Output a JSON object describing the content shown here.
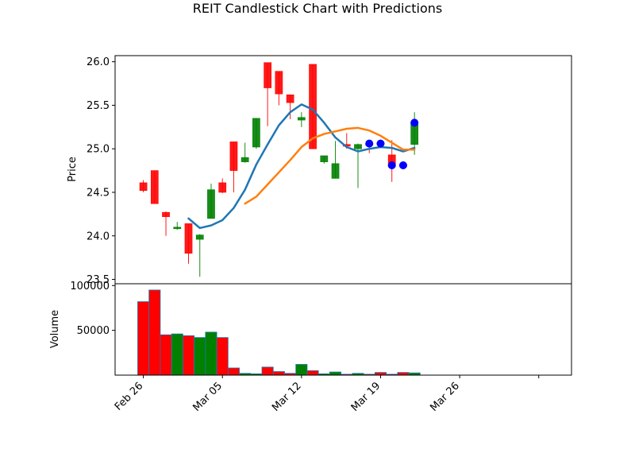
{
  "chart_data": {
    "type": "candlestick",
    "title": "REIT Candlestick Chart with Predictions",
    "price_panel": {
      "ylabel": "Price",
      "ylim": [
        23.45,
        26.07
      ],
      "yticks": [
        23.5,
        24.0,
        24.5,
        25.0,
        25.5,
        26.0
      ],
      "ytick_labels": [
        "23.5",
        "24.0",
        "24.5",
        "25.0",
        "25.5",
        "26.0"
      ]
    },
    "volume_panel": {
      "ylabel": "Volume",
      "ylim": [
        0,
        102000
      ],
      "yticks": [
        50000,
        100000
      ],
      "ytick_labels": [
        "50000",
        "100000"
      ]
    },
    "x_axis": {
      "tick_positions": [
        0,
        7,
        14,
        21,
        28,
        35
      ],
      "tick_labels": [
        "Feb 26",
        "Mar 05",
        "Mar 12",
        "Mar 19",
        "Mar 26",
        ""
      ],
      "xlim": [
        -2.5,
        37.9
      ]
    },
    "candles": [
      {
        "x": 0,
        "open": 24.61,
        "high": 24.64,
        "low": 24.5,
        "close": 24.52,
        "volume": 82000
      },
      {
        "x": 1,
        "open": 24.75,
        "high": 24.75,
        "low": 24.37,
        "close": 24.37,
        "volume": 95000
      },
      {
        "x": 2,
        "open": 24.27,
        "high": 24.28,
        "low": 24.0,
        "close": 24.22,
        "volume": 45000
      },
      {
        "x": 3,
        "open": 24.09,
        "high": 24.16,
        "low": 24.07,
        "close": 24.1,
        "volume": 46000
      },
      {
        "x": 4,
        "open": 24.14,
        "high": 24.14,
        "low": 23.68,
        "close": 23.8,
        "volume": 44000
      },
      {
        "x": 5,
        "open": 23.96,
        "high": 24.02,
        "low": 23.53,
        "close": 24.01,
        "volume": 42000
      },
      {
        "x": 6,
        "open": 24.2,
        "high": 24.6,
        "low": 24.2,
        "close": 24.53,
        "volume": 48000
      },
      {
        "x": 7,
        "open": 24.61,
        "high": 24.66,
        "low": 24.49,
        "close": 24.5,
        "volume": 42000
      },
      {
        "x": 8,
        "open": 25.08,
        "high": 25.08,
        "low": 24.5,
        "close": 24.75,
        "volume": 8000
      },
      {
        "x": 9,
        "open": 24.85,
        "high": 25.07,
        "low": 24.84,
        "close": 24.9,
        "volume": 2000
      },
      {
        "x": 10,
        "open": 25.02,
        "high": 25.35,
        "low": 25.0,
        "close": 25.35,
        "volume": 1500
      },
      {
        "x": 11,
        "open": 25.99,
        "high": 25.99,
        "low": 25.26,
        "close": 25.7,
        "volume": 9000
      },
      {
        "x": 12,
        "open": 25.89,
        "high": 25.89,
        "low": 25.5,
        "close": 25.63,
        "volume": 4000
      },
      {
        "x": 13,
        "open": 25.62,
        "high": 25.62,
        "low": 25.34,
        "close": 25.53,
        "volume": 2000
      },
      {
        "x": 14,
        "open": 25.33,
        "high": 25.42,
        "low": 25.25,
        "close": 25.36,
        "volume": 12000
      },
      {
        "x": 15,
        "open": 25.97,
        "high": 25.97,
        "low": 25.0,
        "close": 25.0,
        "volume": 5000
      },
      {
        "x": 16,
        "open": 24.85,
        "high": 24.92,
        "low": 24.83,
        "close": 24.92,
        "volume": 1500
      },
      {
        "x": 17,
        "open": 24.66,
        "high": 25.09,
        "low": 24.66,
        "close": 24.83,
        "volume": 3500
      },
      {
        "x": 18,
        "open": 25.05,
        "high": 25.18,
        "low": 25.0,
        "close": 25.03,
        "volume": 1000
      },
      {
        "x": 19,
        "open": 25.0,
        "high": 25.06,
        "low": 24.55,
        "close": 25.05,
        "volume": 2000
      },
      {
        "x": 20,
        "open": 25.06,
        "high": 25.1,
        "low": 24.95,
        "close": 25.04,
        "volume": 1000
      },
      {
        "x": 21,
        "open": 25.07,
        "high": 25.1,
        "low": 25.05,
        "close": 25.06,
        "volume": 3000
      },
      {
        "x": 22,
        "open": 24.93,
        "high": 25.1,
        "low": 24.62,
        "close": 24.8,
        "volume": 1000
      },
      {
        "x": 23,
        "open": 24.82,
        "high": 24.83,
        "low": 24.79,
        "close": 24.8,
        "volume": 3000
      },
      {
        "x": 24,
        "open": 25.05,
        "high": 25.42,
        "low": 24.93,
        "close": 25.3,
        "volume": 2500
      }
    ],
    "moving_averages": [
      {
        "color": "#1f77b4",
        "x": [
          4,
          5,
          6,
          7,
          8,
          9,
          10,
          11,
          12,
          13,
          14,
          15,
          16,
          17,
          18,
          19,
          20,
          21,
          22,
          23,
          24
        ],
        "y": [
          24.2,
          24.09,
          24.12,
          24.18,
          24.32,
          24.53,
          24.82,
          25.05,
          25.27,
          25.42,
          25.51,
          25.45,
          25.3,
          25.13,
          25.02,
          24.97,
          25.0,
          25.02,
          25.01,
          24.97,
          25.01
        ]
      },
      {
        "color": "#ff7f0e",
        "x": [
          9,
          10,
          11,
          12,
          13,
          14,
          15,
          16,
          17,
          18,
          19,
          20,
          21,
          22,
          23,
          24
        ],
        "y": [
          24.37,
          24.45,
          24.59,
          24.73,
          24.87,
          25.02,
          25.12,
          25.17,
          25.2,
          25.23,
          25.24,
          25.21,
          25.15,
          25.07,
          24.99,
          24.99
        ]
      }
    ],
    "predictions": {
      "color": "#0000ff",
      "x": [
        20,
        21,
        22,
        23,
        24
      ],
      "y": [
        25.06,
        25.06,
        24.81,
        24.81,
        25.3
      ]
    },
    "colors": {
      "up": "#008000",
      "down": "#ff0000",
      "volume_edge": "#1f77b4"
    }
  }
}
